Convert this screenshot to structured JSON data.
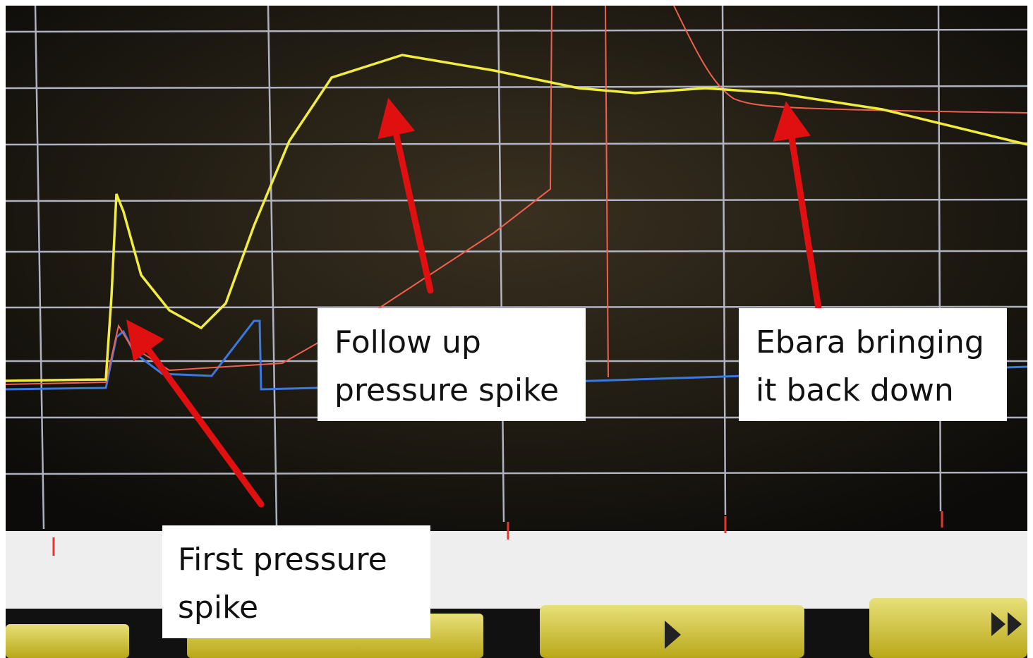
{
  "annotations": [
    {
      "lines": [
        "Follow up",
        "pressure spike"
      ]
    },
    {
      "lines": [
        "Ebara bringing",
        "it back down"
      ]
    },
    {
      "lines": [
        "First pressure",
        "spike"
      ]
    }
  ]
}
